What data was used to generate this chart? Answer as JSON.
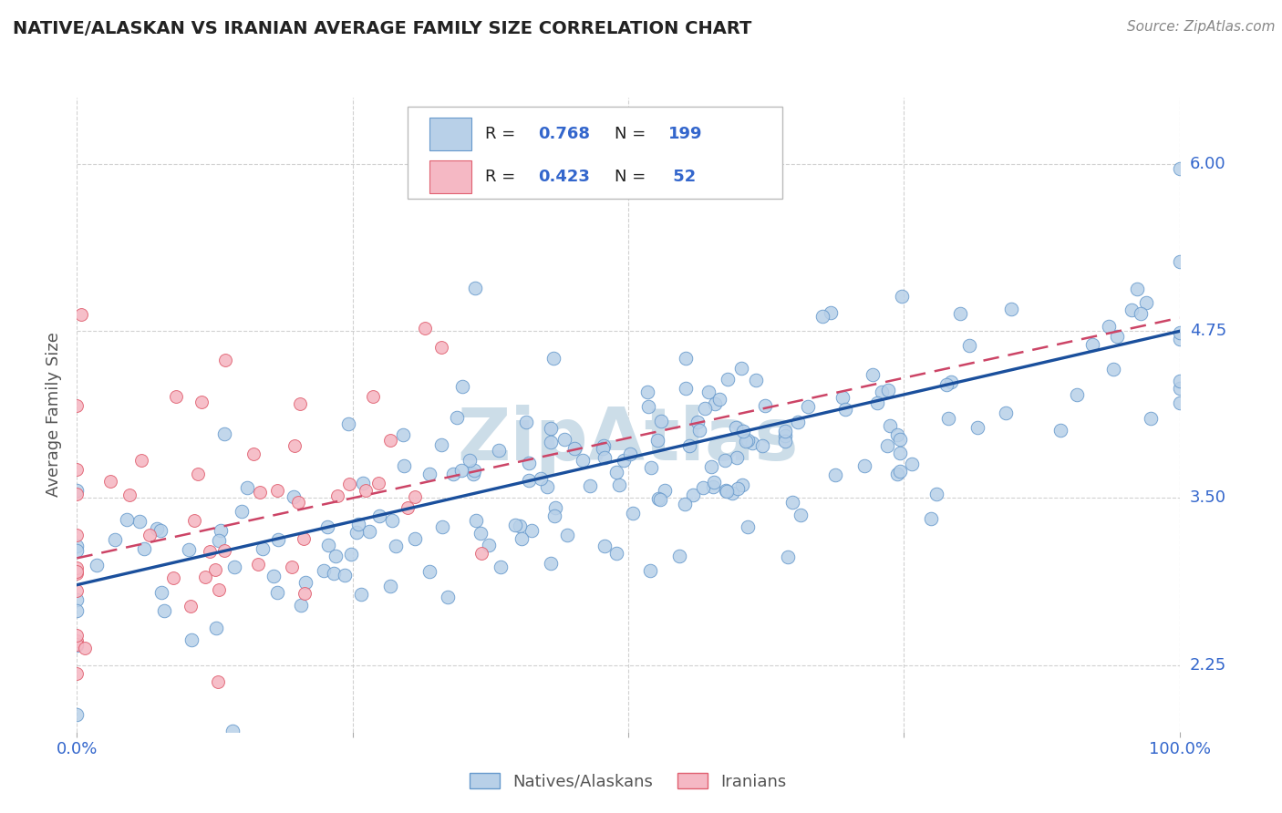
{
  "title": "NATIVE/ALASKAN VS IRANIAN AVERAGE FAMILY SIZE CORRELATION CHART",
  "source_text": "Source: ZipAtlas.com",
  "ylabel": "Average Family Size",
  "xmin": 0.0,
  "xmax": 1.0,
  "ymin": 1.75,
  "ymax": 6.5,
  "yticks": [
    2.25,
    3.5,
    4.75,
    6.0
  ],
  "ytick_labels": [
    "2.25",
    "3.50",
    "4.75",
    "6.00"
  ],
  "scatter1_color": "#b8d0e8",
  "scatter1_edge": "#6699cc",
  "scatter2_color": "#f5b8c4",
  "scatter2_edge": "#e06070",
  "line1_color": "#1a4f9c",
  "line2_color": "#cc4466",
  "title_color": "#222222",
  "axis_tick_color": "#3366cc",
  "grid_color": "#cccccc",
  "background_color": "#ffffff",
  "watermark": "ZipAtlas",
  "watermark_color": "#ccdde8",
  "seed": 42,
  "n1": 199,
  "n2": 52,
  "r1": 0.768,
  "r2": 0.423,
  "line1_x0": 0.0,
  "line1_y0": 2.85,
  "line1_x1": 1.0,
  "line1_y1": 4.75,
  "line2_x0": 0.0,
  "line2_y0": 3.05,
  "line2_x1": 1.0,
  "line2_y1": 4.85
}
